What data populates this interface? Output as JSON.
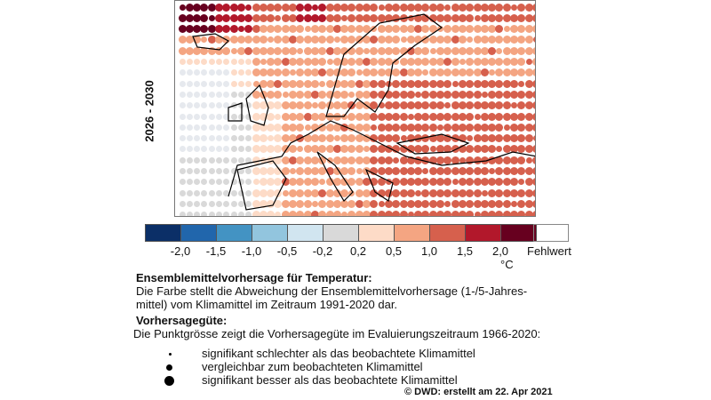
{
  "period_label": "2026 - 2030",
  "colorbar": {
    "colors": [
      "#0b2f67",
      "#2166ac",
      "#4393c3",
      "#92c5de",
      "#d1e5f0",
      "#d9d9d9",
      "#fddbc7",
      "#f4a582",
      "#d6604d",
      "#b2182b",
      "#67001f"
    ],
    "ticks": [
      "-2,0",
      "-1,5",
      "-1,0",
      "-0,5",
      "-0,2",
      "0,2",
      "0,5",
      "1,0",
      "1,5",
      "2,0"
    ],
    "unit": "°C",
    "missing_label": "Fehlwert"
  },
  "text": {
    "heading1": "Ensemblemittelvorhersage für Temperatur:",
    "line1": "Die Farbe stellt die Abweichung der Ensemblemittelvorhersage (1-/5-Jahres-",
    "line2": "mittel) vom Klimamittel im Zeitraum 1991-2020 dar.",
    "heading2": "Vorhersagegüte:",
    "line3": "Die Punktgrösse zeigt die Vorhersagegüte im Evaluierungszeitraum 1966-2020:",
    "legend": [
      "signifikant schlechter als das beobachtete Klimamittel",
      "vergleichbar zum beobachteten Klimamittel",
      "signifikant besser als das beobachtete Klimamittel"
    ],
    "credit": "© DWD: erstellt am 22. Apr 2021"
  }
}
